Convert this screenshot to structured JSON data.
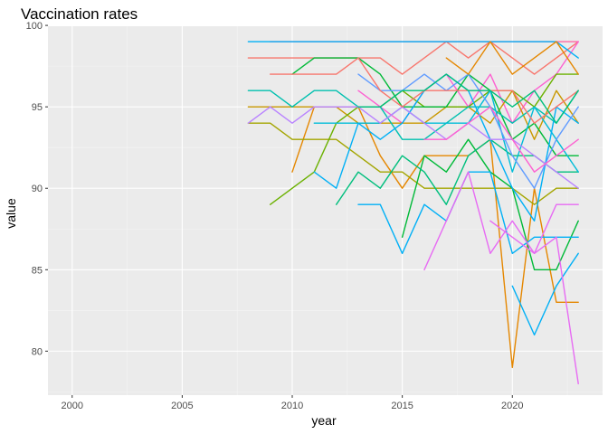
{
  "chart_data": {
    "type": "line",
    "title": "Vaccination rates",
    "xlabel": "year",
    "ylabel": "value",
    "xlim": [
      1998.9,
      2024.1
    ],
    "ylim": [
      77.3,
      99.95
    ],
    "x_ticks": [
      2000,
      2005,
      2010,
      2015,
      2020
    ],
    "x_tick_labels": [
      "2000",
      "2005",
      "2010",
      "2015",
      "2020"
    ],
    "y_ticks": [
      80,
      85,
      90,
      95,
      100
    ],
    "y_tick_labels": [
      "80",
      "85",
      "90",
      "95",
      "100"
    ],
    "grid": true,
    "legend": "none",
    "colors": {
      "panel": "#ebebeb",
      "grid_major": "#ffffff",
      "grid_minor": "#f5f5f5",
      "series_palette": [
        "#f8766d",
        "#e58700",
        "#c99800",
        "#a3a500",
        "#6bb100",
        "#00ba38",
        "#00bf7d",
        "#00c0af",
        "#00bcd8",
        "#00b0f6",
        "#619cff",
        "#b983ff",
        "#e76bf3",
        "#fd61d1",
        "#ff67a4"
      ]
    },
    "series": [
      {
        "color": "#f8766d",
        "x": [
          2008,
          2009,
          2010,
          2011,
          2012,
          2013,
          2014,
          2015,
          2016,
          2017,
          2018,
          2019,
          2020,
          2021,
          2022,
          2023
        ],
        "y": [
          98,
          98,
          98,
          98,
          98,
          98,
          98,
          97,
          98,
          99,
          98,
          99,
          98,
          97,
          98,
          99
        ]
      },
      {
        "color": "#ff67a4",
        "x": [
          2009,
          2010,
          2011,
          2012,
          2013,
          2014,
          2015,
          2016,
          2017,
          2018,
          2019,
          2020,
          2021,
          2022,
          2023
        ],
        "y": [
          99,
          99,
          99,
          99,
          99,
          99,
          99,
          99,
          99,
          99,
          99,
          99,
          99,
          99,
          99
        ]
      },
      {
        "color": "#fd61d1",
        "x": [
          2013,
          2014,
          2015,
          2016,
          2017,
          2018,
          2019,
          2020,
          2021,
          2022,
          2023
        ],
        "y": [
          96,
          95,
          94,
          96,
          97,
          95,
          97,
          94,
          96,
          97,
          99
        ]
      },
      {
        "color": "#e58700",
        "x": [
          2010,
          2011,
          2012,
          2013,
          2014,
          2015,
          2016,
          2017,
          2018,
          2019,
          2020,
          2021,
          2022,
          2023
        ],
        "y": [
          91,
          95,
          95,
          95,
          92,
          90,
          92,
          92,
          92,
          93,
          79,
          90,
          83,
          83
        ]
      },
      {
        "color": "#c99800",
        "x": [
          2008,
          2009,
          2010,
          2011,
          2012,
          2013,
          2014,
          2015,
          2016,
          2017,
          2018,
          2019,
          2020,
          2021,
          2022,
          2023
        ],
        "y": [
          95,
          95,
          95,
          95,
          95,
          94,
          94,
          94,
          94,
          95,
          95,
          94,
          96,
          93,
          96,
          94
        ]
      },
      {
        "color": "#a3a500",
        "x": [
          2008,
          2009,
          2010,
          2011,
          2012,
          2013,
          2014,
          2015,
          2016,
          2017,
          2018,
          2019,
          2020,
          2021,
          2022,
          2023
        ],
        "y": [
          94,
          94,
          93,
          93,
          93,
          92,
          91,
          91,
          90,
          90,
          90,
          90,
          90,
          89,
          90,
          90
        ]
      },
      {
        "color": "#6bb100",
        "x": [
          2009,
          2010,
          2011,
          2012,
          2013,
          2014,
          2015,
          2016,
          2017,
          2018,
          2019,
          2020,
          2021,
          2022,
          2023
        ],
        "y": [
          89,
          90,
          91,
          94,
          95,
          95,
          96,
          95,
          95,
          95,
          96,
          96,
          95,
          97,
          97
        ]
      },
      {
        "color": "#00ba38",
        "x": [
          2010,
          2011,
          2012,
          2013,
          2014,
          2015,
          2016,
          2017,
          2018,
          2019,
          2020,
          2021,
          2022,
          2023
        ],
        "y": [
          97,
          98,
          98,
          98,
          97,
          95,
          95,
          95,
          97,
          96,
          93,
          94,
          92,
          92
        ]
      },
      {
        "color": "#00ba38",
        "x": [
          2015,
          2016,
          2017,
          2018,
          2019,
          2020,
          2021,
          2022,
          2023
        ],
        "y": [
          87,
          92,
          91,
          93,
          91,
          90,
          85,
          85,
          88
        ]
      },
      {
        "color": "#00bf7d",
        "x": [
          2012,
          2013,
          2014,
          2015,
          2016,
          2017,
          2018,
          2019,
          2020,
          2021,
          2022,
          2023
        ],
        "y": [
          89,
          91,
          90,
          92,
          91,
          89,
          92,
          93,
          92,
          92,
          91,
          91
        ]
      },
      {
        "color": "#00c0af",
        "x": [
          2008,
          2009,
          2010,
          2011,
          2012,
          2013,
          2014,
          2015,
          2016,
          2017,
          2018,
          2019,
          2020,
          2021,
          2022,
          2023
        ],
        "y": [
          96,
          96,
          95,
          96,
          96,
          95,
          95,
          93,
          93,
          94,
          95,
          95,
          94,
          95,
          94,
          96
        ]
      },
      {
        "color": "#00bcd8",
        "x": [
          2011,
          2012,
          2013,
          2014,
          2015,
          2016,
          2017,
          2018,
          2019,
          2020,
          2021,
          2022,
          2023
        ],
        "y": [
          94,
          94,
          94,
          94,
          95,
          94,
          94,
          94,
          96,
          91,
          95,
          93,
          91
        ]
      },
      {
        "color": "#00b0f6",
        "x": [
          2008,
          2009,
          2010,
          2011,
          2012,
          2013,
          2014,
          2015,
          2016,
          2017,
          2018,
          2019,
          2020,
          2021,
          2022,
          2023
        ],
        "y": [
          99,
          99,
          99,
          99,
          99,
          99,
          99,
          99,
          99,
          99,
          99,
          99,
          99,
          99,
          99,
          98
        ]
      },
      {
        "color": "#00b0f6",
        "x": [
          2013,
          2014,
          2015,
          2016,
          2017,
          2018,
          2019,
          2020,
          2021,
          2022,
          2023
        ],
        "y": [
          89,
          89,
          86,
          89,
          88,
          91,
          91,
          86,
          87,
          87,
          87
        ]
      },
      {
        "color": "#00b0f6",
        "x": [
          2011,
          2012,
          2013,
          2014,
          2015,
          2016,
          2017,
          2018,
          2019,
          2020,
          2021,
          2022,
          2023
        ],
        "y": [
          91,
          90,
          94,
          93,
          94,
          96,
          97,
          96,
          93,
          90,
          88,
          95,
          94
        ]
      },
      {
        "color": "#00b0f6",
        "x": [
          2020,
          2021,
          2022,
          2023
        ],
        "y": [
          84,
          81,
          84,
          86
        ]
      },
      {
        "color": "#619cff",
        "x": [
          2013,
          2014,
          2015,
          2016,
          2017,
          2018,
          2019,
          2020,
          2021,
          2022,
          2023
        ],
        "y": [
          97,
          96,
          96,
          97,
          96,
          97,
          95,
          92,
          90,
          93,
          95
        ]
      },
      {
        "color": "#b983ff",
        "x": [
          2008,
          2009,
          2010,
          2011,
          2012,
          2013,
          2014,
          2015,
          2016,
          2017,
          2018,
          2019,
          2020,
          2021,
          2022,
          2023
        ],
        "y": [
          94,
          95,
          94,
          95,
          95,
          95,
          94,
          95,
          94,
          93,
          94,
          93,
          93,
          92,
          91,
          90
        ]
      },
      {
        "color": "#e76bf3",
        "x": [
          2016,
          2017,
          2018,
          2019,
          2020,
          2021,
          2022,
          2023
        ],
        "y": [
          85,
          88,
          91,
          86,
          88,
          86,
          87,
          78
        ]
      },
      {
        "color": "#e76bf3",
        "x": [
          2019,
          2020,
          2021,
          2022,
          2023
        ],
        "y": [
          88,
          87,
          86,
          89,
          89
        ]
      },
      {
        "color": "#f8766d",
        "x": [
          2009,
          2010,
          2011,
          2012,
          2013,
          2014,
          2015,
          2016,
          2017,
          2018,
          2019,
          2020,
          2021,
          2022,
          2023
        ],
        "y": [
          97,
          97,
          97,
          97,
          98,
          96,
          95,
          96,
          96,
          96,
          96,
          96,
          94,
          95,
          96
        ]
      },
      {
        "color": "#00bf7d",
        "x": [
          2013,
          2014,
          2015,
          2016,
          2017,
          2018,
          2019,
          2020,
          2021,
          2022,
          2023
        ],
        "y": [
          95,
          95,
          96,
          96,
          97,
          96,
          96,
          95,
          96,
          94,
          96
        ]
      },
      {
        "color": "#e58700",
        "x": [
          2017,
          2018,
          2019,
          2020,
          2021,
          2022,
          2023
        ],
        "y": [
          98,
          97,
          99,
          97,
          98,
          99,
          97
        ]
      },
      {
        "color": "#fd61d1",
        "x": [
          2016,
          2017,
          2018,
          2019,
          2020,
          2021,
          2022,
          2023
        ],
        "y": [
          93,
          93,
          94,
          95,
          93,
          91,
          92,
          93
        ]
      }
    ]
  }
}
